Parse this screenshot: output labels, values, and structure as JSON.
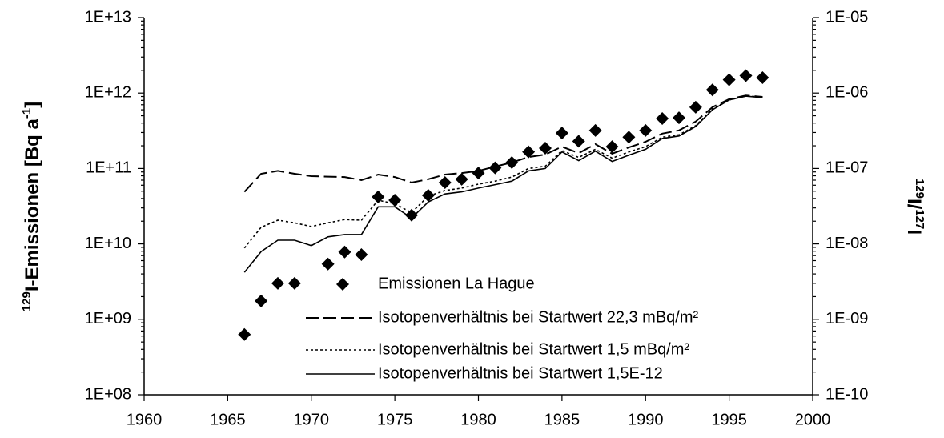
{
  "chart_data": {
    "type": "line",
    "ylabel_parts": [
      "129",
      "I-Emissionen [Bq a",
      "-1",
      "]"
    ],
    "y2label_parts": [
      "129",
      "I/",
      "127",
      "I"
    ],
    "log_y": true,
    "xlim": [
      1960,
      2000
    ],
    "xticks": [
      1960,
      1965,
      1970,
      1975,
      1980,
      1985,
      1990,
      1995,
      2000
    ],
    "ylim": [
      100000000.0,
      10000000000000.0
    ],
    "yticks": [
      {
        "value": 100000000.0,
        "label": "1E+08"
      },
      {
        "value": 1000000000.0,
        "label": "1E+09"
      },
      {
        "value": 10000000000.0,
        "label": "1E+10"
      },
      {
        "value": 100000000000.0,
        "label": "1E+11"
      },
      {
        "value": 1000000000000.0,
        "label": "1E+12"
      },
      {
        "value": 10000000000000.0,
        "label": "1E+13"
      }
    ],
    "y2lim": [
      1e-10,
      1e-05
    ],
    "y2ticks": [
      {
        "value": 1e-10,
        "label": "1E-10"
      },
      {
        "value": 1e-09,
        "label": "1E-09"
      },
      {
        "value": 1e-08,
        "label": "1E-08"
      },
      {
        "value": 1e-07,
        "label": "1E-07"
      },
      {
        "value": 1e-06,
        "label": "1E-06"
      },
      {
        "value": 1e-05,
        "label": "1E-05"
      }
    ],
    "series": [
      {
        "name": "Emissionen La Hague",
        "color": "#000000",
        "style": "marker",
        "x": [
          1966,
          1967,
          1968,
          1969,
          1971,
          1972,
          1973,
          1974,
          1975,
          1976,
          1977,
          1978,
          1979,
          1980,
          1981,
          1982,
          1983,
          1984,
          1985,
          1986,
          1987,
          1988,
          1989,
          1990,
          1991,
          1992,
          1993,
          1994,
          1995,
          1996,
          1997
        ],
        "values": [
          630000000.0,
          1750000000.0,
          3000000000.0,
          3000000000.0,
          5400000000.0,
          7800000000.0,
          7200000000.0,
          42000000000.0,
          38000000000.0,
          24000000000.0,
          44000000000.0,
          65000000000.0,
          72000000000.0,
          87000000000.0,
          102000000000.0,
          120000000000.0,
          166000000000.0,
          186000000000.0,
          295000000000.0,
          230000000000.0,
          320000000000.0,
          195000000000.0,
          260000000000.0,
          320000000000.0,
          460000000000.0,
          470000000000.0,
          650000000000.0,
          1100000000000.0,
          1500000000000.0,
          1700000000000.0,
          1600000000000.0
        ]
      },
      {
        "name": "Isotopenverhältnis bei Startwert 22,3 mBq/m²",
        "color": "#000000",
        "style": "dashed",
        "axis": "y2",
        "x": [
          1966,
          1967,
          1968,
          1969,
          1970,
          1971,
          1972,
          1973,
          1974,
          1975,
          1976,
          1977,
          1978,
          1979,
          1980,
          1981,
          1982,
          1983,
          1984,
          1985,
          1986,
          1987,
          1988,
          1989,
          1990,
          1991,
          1992,
          1993,
          1994,
          1995,
          1996,
          1997
        ],
        "values": [
          4.9e-08,
          8.5e-08,
          9.3e-08,
          8.5e-08,
          7.9e-08,
          7.8e-08,
          7.7e-08,
          7e-08,
          8.3e-08,
          7.7e-08,
          6.5e-08,
          7.2e-08,
          8.3e-08,
          8.7e-08,
          9.3e-08,
          1.06e-07,
          1.2e-07,
          1.42e-07,
          1.53e-07,
          1.95e-07,
          1.6e-07,
          2.1e-07,
          1.57e-07,
          1.9e-07,
          2.26e-07,
          2.9e-07,
          3.2e-07,
          4.2e-07,
          6.5e-07,
          8.3e-07,
          9.3e-07,
          8.9e-07
        ]
      },
      {
        "name": "Isotopenverhältnis bei Startwert 1,5 mBq/m²",
        "color": "#000000",
        "style": "dotted",
        "axis": "y2",
        "x": [
          1966,
          1967,
          1968,
          1969,
          1970,
          1971,
          1972,
          1973,
          1974,
          1975,
          1976,
          1977,
          1978,
          1979,
          1980,
          1981,
          1982,
          1983,
          1984,
          1985,
          1986,
          1987,
          1988,
          1989,
          1990,
          1991,
          1992,
          1993,
          1994,
          1995,
          1996,
          1997
        ],
        "values": [
          8.8e-09,
          1.66e-08,
          2.06e-08,
          1.9e-08,
          1.7e-08,
          1.9e-08,
          2.1e-08,
          2.06e-08,
          3.8e-08,
          3.4e-08,
          2.6e-08,
          4.3e-08,
          5.1e-08,
          5.5e-08,
          6.2e-08,
          6.8e-08,
          7.7e-08,
          1e-07,
          1.07e-07,
          1.73e-07,
          1.4e-07,
          1.8e-07,
          1.37e-07,
          1.66e-07,
          1.95e-07,
          2.6e-07,
          2.8e-07,
          3.7e-07,
          6.2e-07,
          8.1e-07,
          9.1e-07,
          8.9e-07
        ]
      },
      {
        "name": "Isotopenverhältnis bei Startwert 1,5E-12",
        "color": "#000000",
        "style": "solid",
        "axis": "y2",
        "x": [
          1966,
          1967,
          1968,
          1969,
          1970,
          1971,
          1972,
          1973,
          1974,
          1975,
          1976,
          1977,
          1978,
          1979,
          1980,
          1981,
          1982,
          1983,
          1984,
          1985,
          1986,
          1987,
          1988,
          1989,
          1990,
          1991,
          1992,
          1993,
          1994,
          1995,
          1996,
          1997
        ],
        "values": [
          4.2e-09,
          7.9e-09,
          1.12e-08,
          1.12e-08,
          9.5e-09,
          1.24e-08,
          1.33e-08,
          1.33e-08,
          3.1e-08,
          3.1e-08,
          2.2e-08,
          3.6e-08,
          4.6e-08,
          4.9e-08,
          5.5e-08,
          6.1e-08,
          6.8e-08,
          9.3e-08,
          1e-07,
          1.66e-07,
          1.27e-07,
          1.7e-07,
          1.24e-07,
          1.5e-07,
          1.8e-07,
          2.5e-07,
          2.7e-07,
          3.6e-07,
          6e-07,
          8.1e-07,
          9.1e-07,
          8.7e-07
        ]
      }
    ]
  }
}
